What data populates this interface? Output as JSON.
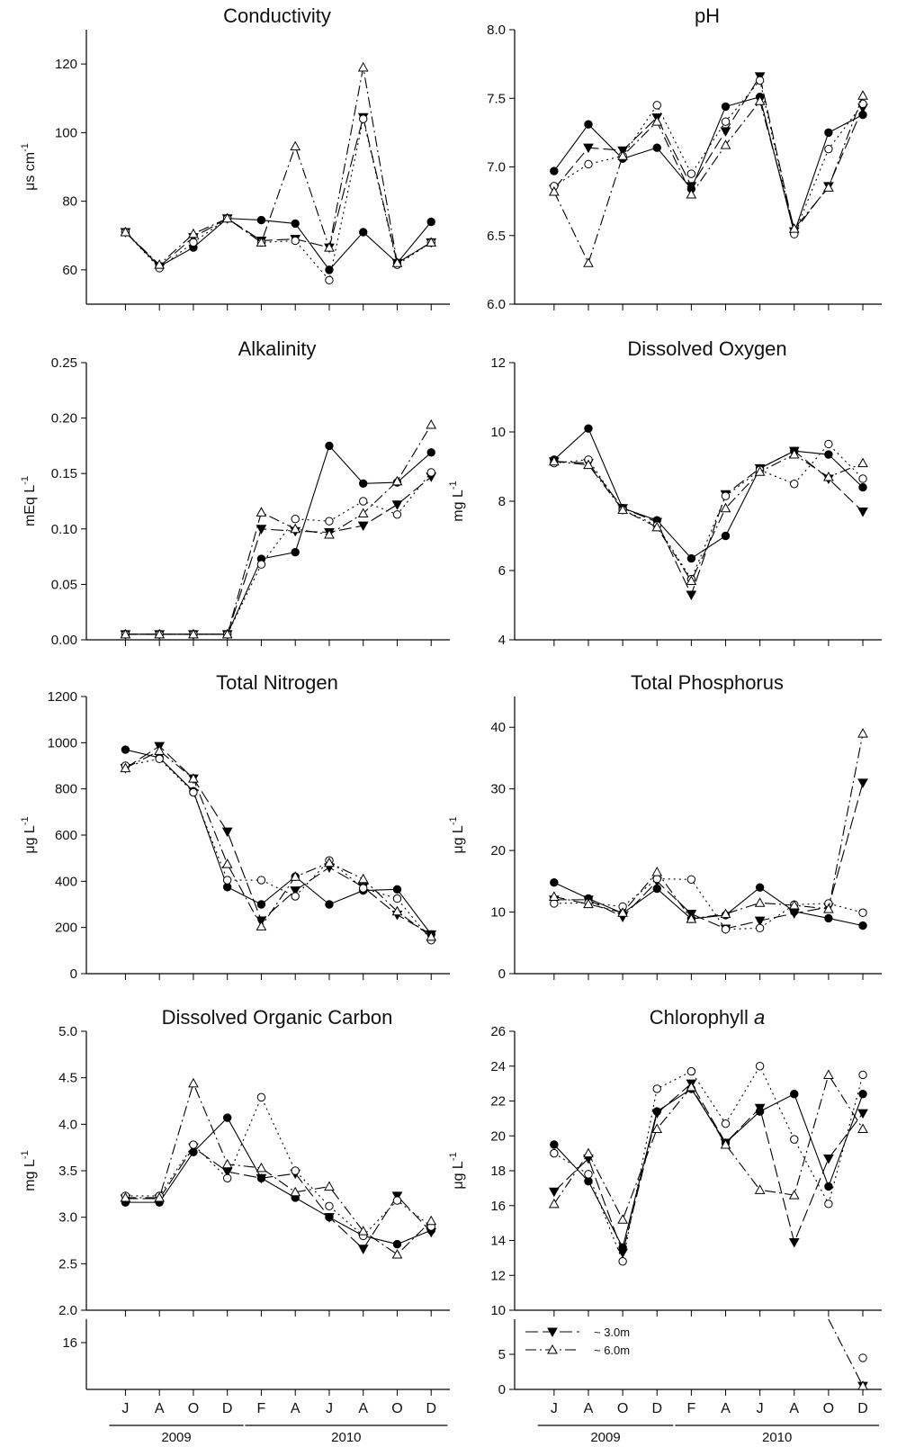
{
  "months": [
    "J",
    "A",
    "O",
    "D",
    "F",
    "A",
    "J",
    "A",
    "O",
    "D"
  ],
  "years": [
    "2009",
    "2010"
  ],
  "legend": [
    {
      "name": "~ 3.0m",
      "series": 1
    },
    {
      "name": "~ 6.0m",
      "series": 3
    }
  ],
  "chart_data": [
    {
      "type": "line",
      "title": "Conductivity",
      "ylabel": "μs cm",
      "ylabel_sup": "-1",
      "ylim": [
        50,
        130
      ],
      "yticks": [
        60,
        80,
        100,
        120
      ],
      "series": [
        {
          "values": [
            71,
            61,
            66.5,
            75,
            74.5,
            73.5,
            60,
            71,
            62,
            74
          ]
        },
        {
          "values": [
            71,
            61,
            69.5,
            75,
            68.5,
            69,
            66.5,
            104.5,
            62,
            68
          ]
        },
        {
          "values": [
            71,
            60.5,
            68,
            75,
            68,
            68.5,
            57,
            104,
            61.5,
            68
          ]
        },
        {
          "values": [
            71,
            61.5,
            70.5,
            75,
            68,
            96,
            66.5,
            119,
            62,
            68
          ]
        }
      ]
    },
    {
      "type": "line",
      "title": "pH",
      "ylabel": "",
      "ylabel_sup": "",
      "ylim": [
        6.0,
        8.0
      ],
      "yticks": [
        6.0,
        6.5,
        7.0,
        7.5,
        8.0
      ],
      "series": [
        {
          "values": [
            6.97,
            7.31,
            7.06,
            7.14,
            6.84,
            7.44,
            7.51,
            6.52,
            7.25,
            7.38
          ]
        },
        {
          "values": [
            6.84,
            7.14,
            7.12,
            7.36,
            6.86,
            7.26,
            7.66,
            6.53,
            6.86,
            7.43
          ]
        },
        {
          "values": [
            6.86,
            7.02,
            7.08,
            7.45,
            6.95,
            7.33,
            7.63,
            6.51,
            7.13,
            7.46
          ]
        },
        {
          "values": [
            6.82,
            6.3,
            7.08,
            7.33,
            6.8,
            7.16,
            7.48,
            6.55,
            6.85,
            7.52
          ]
        }
      ]
    },
    {
      "type": "line",
      "title": "Alkalinity",
      "ylabel": "mEq L",
      "ylabel_sup": "-1",
      "ylim": [
        0,
        0.25
      ],
      "yticks": [
        0.0,
        0.05,
        0.1,
        0.15,
        0.2,
        0.25
      ],
      "series": [
        {
          "values": [
            0.005,
            0.005,
            0.005,
            0.005,
            0.073,
            0.079,
            0.175,
            0.141,
            0.142,
            0.169
          ]
        },
        {
          "values": [
            0.005,
            0.005,
            0.005,
            0.005,
            0.1,
            0.098,
            0.097,
            0.103,
            0.122,
            0.147
          ]
        },
        {
          "values": [
            0.005,
            0.005,
            0.005,
            0.005,
            0.068,
            0.109,
            0.107,
            0.125,
            0.113,
            0.151
          ]
        },
        {
          "values": [
            0.005,
            0.005,
            0.005,
            0.005,
            0.115,
            0.1,
            0.095,
            0.114,
            0.143,
            0.194
          ]
        }
      ]
    },
    {
      "type": "line",
      "title": "Dissolved Oxygen",
      "ylabel": "mg L",
      "ylabel_sup": "-1",
      "ylim": [
        4,
        12
      ],
      "yticks": [
        4,
        6,
        8,
        10,
        12
      ],
      "series": [
        {
          "values": [
            9.2,
            10.1,
            7.8,
            7.45,
            6.35,
            7.0,
            8.95,
            9.45,
            9.35,
            8.4
          ]
        },
        {
          "values": [
            9.15,
            9.1,
            7.8,
            7.4,
            5.3,
            8.2,
            8.95,
            9.45,
            8.65,
            7.7
          ]
        },
        {
          "values": [
            9.1,
            9.2,
            7.75,
            7.3,
            5.75,
            8.15,
            8.9,
            8.5,
            9.65,
            8.65
          ]
        },
        {
          "values": [
            9.15,
            9.05,
            7.75,
            7.25,
            5.7,
            7.8,
            8.85,
            9.35,
            8.7,
            9.1
          ]
        }
      ]
    },
    {
      "type": "line",
      "title": "Total Nitrogen",
      "ylabel": "μg L",
      "ylabel_sup": "-1",
      "ylim": [
        0,
        1200
      ],
      "yticks": [
        0,
        200,
        400,
        600,
        800,
        1000,
        1200
      ],
      "series": [
        {
          "values": [
            970,
            935,
            790,
            375,
            300,
            420,
            300,
            360,
            365,
            170
          ]
        },
        {
          "values": [
            890,
            985,
            845,
            615,
            230,
            360,
            460,
            375,
            255,
            170
          ]
        },
        {
          "values": [
            900,
            930,
            785,
            405,
            405,
            335,
            490,
            370,
            325,
            145
          ]
        },
        {
          "values": [
            890,
            965,
            845,
            475,
            205,
            420,
            480,
            410,
            270,
            160
          ]
        }
      ]
    },
    {
      "type": "line",
      "title": "Total Phosphorus",
      "ylabel": "μg L",
      "ylabel_sup": "-1",
      "ylim": [
        0,
        45
      ],
      "yticks": [
        0,
        10,
        20,
        30,
        40
      ],
      "series": [
        {
          "values": [
            14.8,
            12.2,
            9.8,
            13.8,
            8.9,
            9.5,
            14.0,
            10.1,
            9.0,
            7.8
          ]
        },
        {
          "values": [
            12.0,
            12.0,
            9.2,
            15.0,
            9.7,
            7.3,
            8.6,
            9.8,
            10.8,
            31.0
          ]
        },
        {
          "values": [
            11.4,
            11.5,
            10.9,
            15.4,
            15.3,
            7.2,
            7.4,
            11.2,
            11.4,
            9.9
          ]
        },
        {
          "values": [
            12.5,
            11.3,
            9.9,
            16.5,
            8.9,
            9.7,
            11.5,
            11.1,
            10.5,
            39.0
          ]
        }
      ]
    },
    {
      "type": "line",
      "title": "Dissolved Organic Carbon",
      "ylabel": "mg L",
      "ylabel_sup": "-1",
      "ylim": [
        2.0,
        5.0
      ],
      "yticks": [
        2.0,
        2.5,
        3.0,
        3.5,
        4.0,
        4.5,
        5.0
      ],
      "series": [
        {
          "values": [
            3.16,
            3.16,
            3.7,
            4.07,
            3.42,
            3.21,
            3.0,
            2.8,
            2.71,
            2.86
          ]
        },
        {
          "values": [
            3.2,
            3.2,
            3.75,
            3.49,
            3.42,
            3.47,
            3.0,
            2.66,
            3.23,
            2.84
          ]
        },
        {
          "values": [
            3.23,
            3.23,
            3.78,
            3.42,
            4.29,
            3.5,
            3.12,
            2.8,
            3.18,
            2.9
          ]
        },
        {
          "values": [
            3.21,
            3.21,
            4.44,
            3.57,
            3.53,
            3.27,
            3.33,
            2.85,
            2.6,
            2.96
          ]
        }
      ]
    },
    {
      "type": "line",
      "title": "Chlorophyll",
      "title_italic": "a",
      "ylabel": "μg L",
      "ylabel_sup": "-1",
      "ylim": [
        10,
        26
      ],
      "yticks": [
        10,
        12,
        14,
        16,
        18,
        20,
        22,
        24,
        26
      ],
      "series": [
        {
          "values": [
            19.5,
            17.4,
            13.6,
            21.4,
            22.7,
            19.6,
            21.4,
            22.4,
            17.1,
            22.4
          ]
        },
        {
          "values": [
            16.8,
            18.7,
            13.3,
            21.3,
            23.0,
            19.6,
            21.6,
            13.9,
            18.7,
            21.3
          ]
        },
        {
          "values": [
            19.0,
            17.8,
            12.8,
            22.7,
            23.7,
            20.7,
            24.0,
            19.8,
            16.1,
            23.5
          ]
        },
        {
          "values": [
            16.1,
            19.0,
            15.2,
            20.4,
            22.8,
            19.5,
            16.9,
            16.6,
            23.5,
            20.4
          ]
        }
      ]
    }
  ],
  "break_panels": [
    {
      "ylim": [
        14,
        17
      ],
      "yticks": [
        16
      ]
    },
    {
      "ylim": [
        0,
        10
      ],
      "yticks": [
        0,
        5
      ],
      "series": [
        {
          "values": [
            null,
            null,
            null,
            null,
            null,
            null,
            null,
            null,
            null,
            null
          ]
        },
        {
          "values": [
            null,
            null,
            null,
            null,
            null,
            null,
            null,
            null,
            null,
            0.5
          ]
        },
        {
          "values": [
            null,
            null,
            null,
            null,
            null,
            null,
            null,
            null,
            null,
            4.5
          ]
        },
        {
          "values": [
            null,
            null,
            null,
            null,
            null,
            null,
            null,
            null,
            10,
            0.5
          ]
        }
      ]
    }
  ]
}
